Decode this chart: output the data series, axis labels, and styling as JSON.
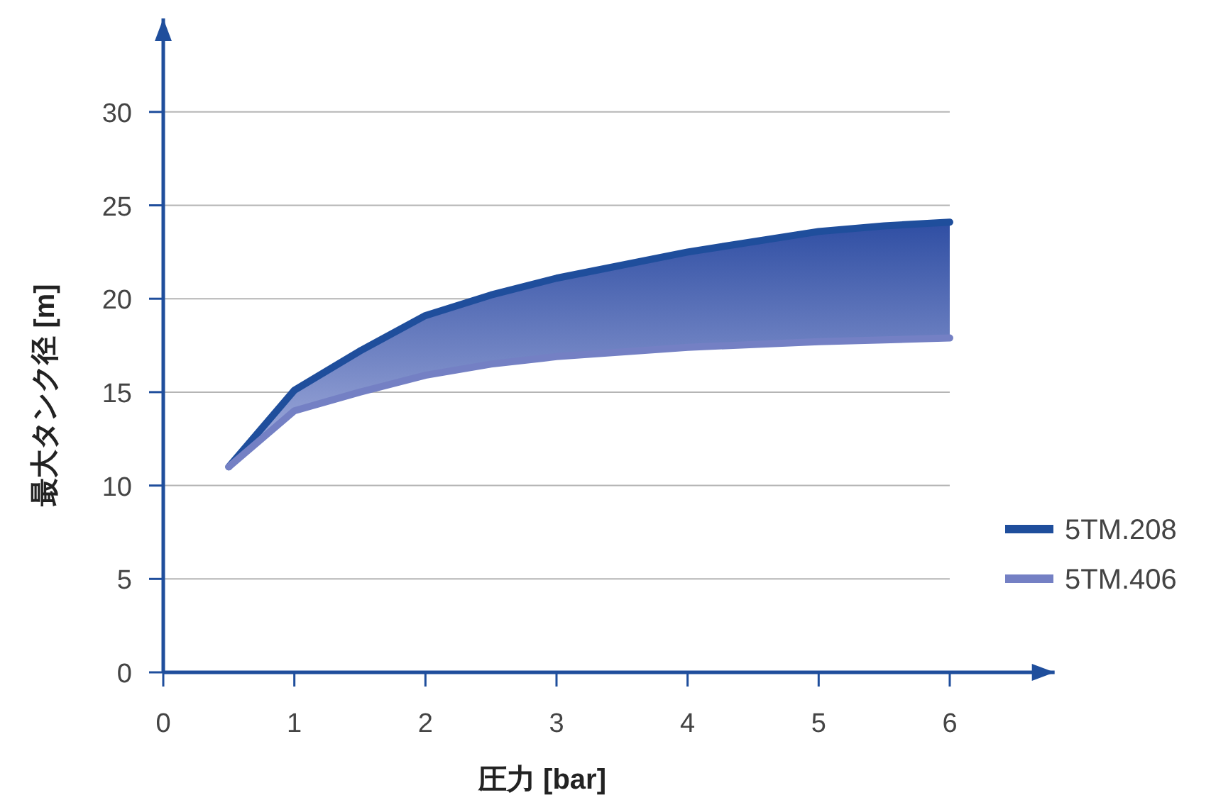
{
  "chart_data": {
    "type": "line",
    "xlabel": "圧力 [bar]",
    "ylabel": "最大タンク径 [m]",
    "x": [
      0.5,
      1,
      1.5,
      2,
      2.5,
      3,
      4,
      5,
      5.5,
      6
    ],
    "xlim": [
      0,
      6.8
    ],
    "ylim": [
      0,
      35
    ],
    "xticks": [
      0,
      1,
      2,
      3,
      4,
      5,
      6
    ],
    "yticks": [
      0,
      5,
      10,
      15,
      20,
      25,
      30
    ],
    "grid": "y",
    "legend": "right",
    "marker": "none",
    "line_style": "solid",
    "series": [
      {
        "name": "5TM.208",
        "color": "#1f4e9c",
        "values": [
          11,
          15.1,
          17.2,
          19.1,
          20.2,
          21.1,
          22.5,
          23.6,
          23.9,
          24.1
        ],
        "lower": [
          11,
          14,
          15,
          15.9,
          16.5,
          16.9,
          17.4,
          17.7,
          17.8,
          17.9
        ],
        "upper": [
          11,
          15.1,
          17.2,
          19.1,
          20.2,
          21.1,
          22.5,
          23.6,
          23.9,
          24.1
        ]
      },
      {
        "name": "5TM.406",
        "color": "#7480c4",
        "values": [
          11,
          14,
          15,
          15.9,
          16.5,
          16.9,
          17.4,
          17.7,
          17.8,
          17.9
        ]
      }
    ]
  }
}
